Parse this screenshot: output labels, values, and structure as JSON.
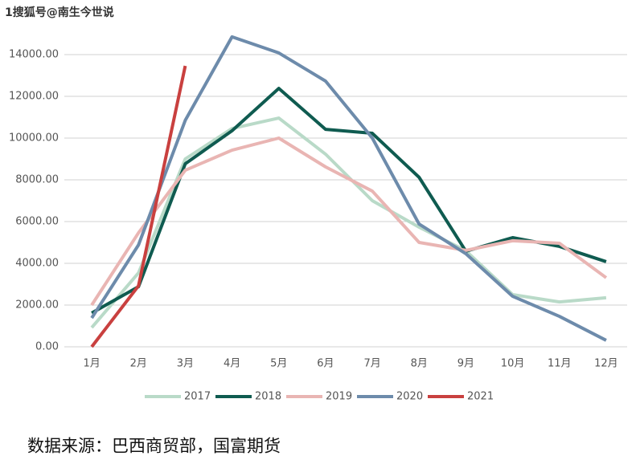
{
  "watermark": "1搜狐号@南生今世说",
  "chart_data": {
    "type": "line",
    "categories": [
      "1月",
      "2月",
      "3月",
      "4月",
      "5月",
      "6月",
      "7月",
      "8月",
      "9月",
      "10月",
      "11月",
      "12月"
    ],
    "series": [
      {
        "name": "2017",
        "color": "#b9dac8",
        "values": [
          920,
          3540,
          9000,
          10460,
          10960,
          9230,
          7000,
          5730,
          4600,
          2500,
          2150,
          2350
        ]
      },
      {
        "name": "2018",
        "color": "#0f5b50",
        "values": [
          1620,
          2880,
          8770,
          10350,
          12380,
          10420,
          10230,
          8120,
          4580,
          5230,
          4810,
          4080
        ]
      },
      {
        "name": "2019",
        "color": "#e9b5b3",
        "values": [
          2000,
          5460,
          8460,
          9420,
          10000,
          8620,
          7460,
          5000,
          4620,
          5080,
          4960,
          3310
        ]
      },
      {
        "name": "2020",
        "color": "#6d8bab",
        "values": [
          1380,
          4880,
          10850,
          14850,
          14080,
          12730,
          10000,
          5880,
          4460,
          2420,
          1460,
          310
        ]
      },
      {
        "name": "2021",
        "color": "#c9403f",
        "values": [
          0,
          2920,
          13460,
          null,
          null,
          null,
          null,
          null,
          null,
          null,
          null,
          null
        ]
      }
    ],
    "ylim": [
      0,
      16000
    ],
    "yticks": [
      {
        "value": 0,
        "label": "0.00"
      },
      {
        "value": 2000,
        "label": "2000.00"
      },
      {
        "value": 4000,
        "label": "4000.00"
      },
      {
        "value": 6000,
        "label": "6000.00"
      },
      {
        "value": 8000,
        "label": "8000.00"
      },
      {
        "value": 10000,
        "label": "10000.00"
      },
      {
        "value": 12000,
        "label": "12000.00"
      },
      {
        "value": 14000,
        "label": "14000.00"
      }
    ],
    "grid": true,
    "legend": "bottom",
    "source": "数据来源：巴西商贸部，国富期货"
  }
}
